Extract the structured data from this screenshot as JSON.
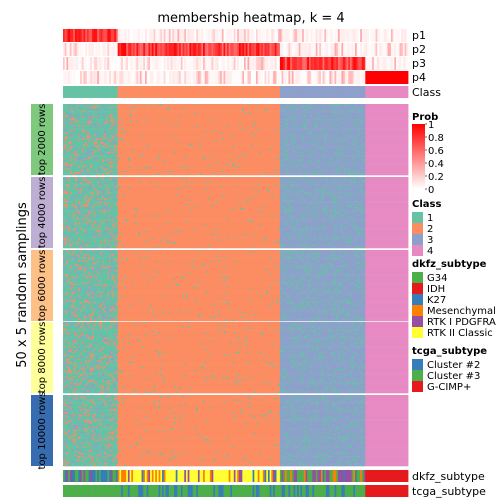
{
  "chart_data": {
    "type": "heatmap",
    "title": "membership heatmap, k = 4",
    "ylabel": "50 x 5 random samplings",
    "column_groups": [
      {
        "class": "1",
        "count": 32
      },
      {
        "class": "2",
        "count": 95
      },
      {
        "class": "3",
        "count": 50
      },
      {
        "class": "4",
        "count": 25
      }
    ],
    "top_annotation": {
      "rows": [
        "p1",
        "p2",
        "p3",
        "p4",
        "Class"
      ]
    },
    "row_blocks": [
      {
        "label": "top 2000 rows",
        "color": "#7fc97f"
      },
      {
        "label": "top 4000 rows",
        "color": "#beaed4"
      },
      {
        "label": "top 6000 rows",
        "color": "#fdc086"
      },
      {
        "label": "top 8000 rows",
        "color": "#ffff99"
      },
      {
        "label": "top 10000 rows",
        "color": "#386cb0"
      }
    ],
    "rows_per_block": 50,
    "bottom_annotation": {
      "rows": [
        "dkfz_subtype",
        "tcga_subtype"
      ]
    },
    "legends": {
      "prob": {
        "title": "Prob",
        "ticks": [
          "1",
          "0.8",
          "0.6",
          "0.4",
          "0.2",
          "0"
        ],
        "low_color": "#ffffff",
        "high_color": "#ff0000"
      },
      "class": {
        "title": "Class",
        "entries": [
          {
            "label": "1",
            "color": "#66c2a5"
          },
          {
            "label": "2",
            "color": "#fc8d62"
          },
          {
            "label": "3",
            "color": "#8da0cb"
          },
          {
            "label": "4",
            "color": "#e78ac3"
          }
        ]
      },
      "dkfz_subtype": {
        "title": "dkfz_subtype",
        "entries": [
          {
            "label": "G34",
            "color": "#4daf4a"
          },
          {
            "label": "IDH",
            "color": "#e41a1c"
          },
          {
            "label": "K27",
            "color": "#377eb8"
          },
          {
            "label": "Mesenchymal",
            "color": "#ff7f00"
          },
          {
            "label": "RTK I PDGFRA",
            "color": "#984ea3"
          },
          {
            "label": "RTK II Classic",
            "color": "#ffff33"
          }
        ]
      },
      "tcga_subtype": {
        "title": "tcga_subtype",
        "entries": [
          {
            "label": "Cluster #2",
            "color": "#377eb8"
          },
          {
            "label": "Cluster #3",
            "color": "#4daf4a"
          },
          {
            "label": "G-CIMP+",
            "color": "#e41a1c"
          }
        ]
      }
    }
  }
}
